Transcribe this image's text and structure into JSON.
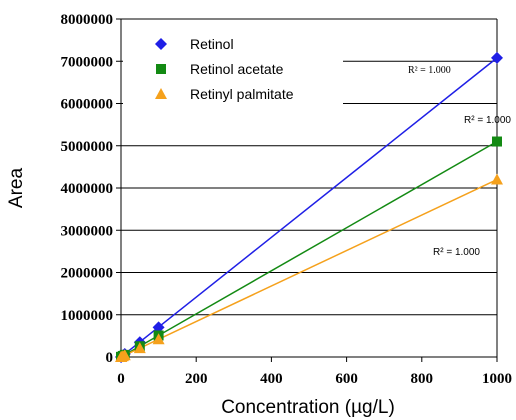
{
  "chart_data": {
    "type": "scatter",
    "xlabel": "Concentration (µg/L)",
    "ylabel": "Area",
    "xlim": [
      0,
      1000
    ],
    "ylim": [
      0,
      8000000
    ],
    "x_ticks": [
      "0",
      "200",
      "400",
      "600",
      "800",
      "1000"
    ],
    "y_ticks": [
      "0",
      "1000000",
      "2000000",
      "3000000",
      "4000000",
      "5000000",
      "6000000",
      "7000000",
      "8000000"
    ],
    "grid": "horizontal",
    "legend_position": "top-left",
    "series": [
      {
        "name": "Retinol",
        "marker": "diamond",
        "color": "#1f1fe6",
        "x": [
          0,
          1,
          5,
          10,
          50,
          100,
          1000
        ],
        "y": [
          0,
          7000,
          35000,
          70000,
          350000,
          700000,
          7080000
        ],
        "trendline_label": "R² = 1.000"
      },
      {
        "name": "Retinol acetate",
        "marker": "square",
        "color": "#138a13",
        "x": [
          0,
          1,
          5,
          10,
          50,
          100,
          1000
        ],
        "y": [
          0,
          5000,
          25000,
          50000,
          255000,
          510000,
          5100000
        ],
        "trendline_label": "R² = 1.000"
      },
      {
        "name": "Retinyl palmitate",
        "marker": "triangle",
        "color": "#f5a11c",
        "x": [
          0,
          1,
          5,
          10,
          50,
          100,
          1000
        ],
        "y": [
          0,
          4200,
          21000,
          42000,
          210000,
          420000,
          4200000
        ],
        "trendline_label": "R² = 1.000"
      }
    ]
  }
}
